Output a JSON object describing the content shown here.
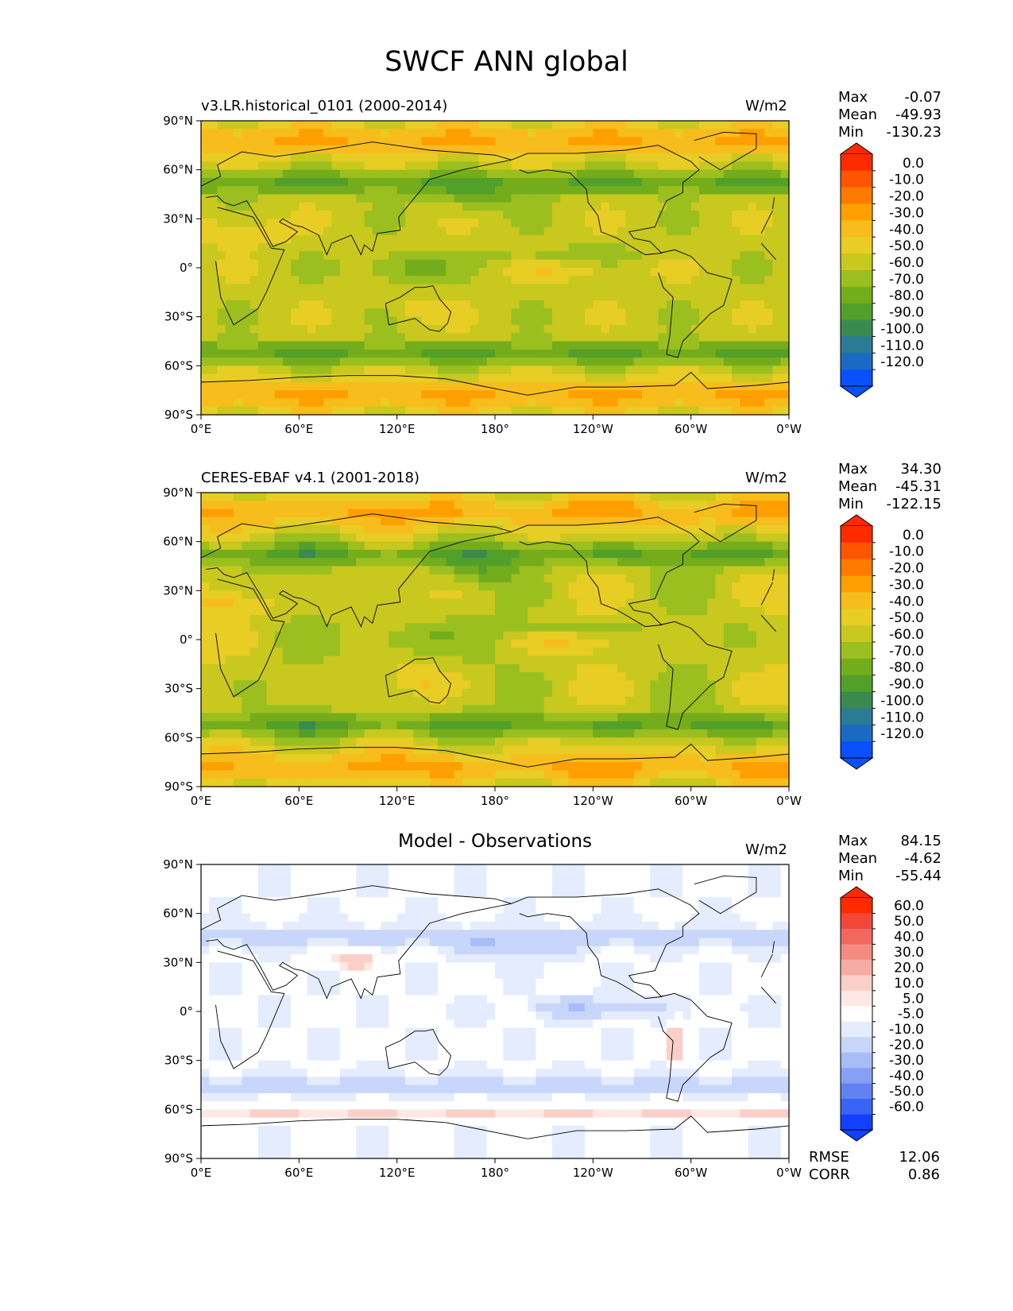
{
  "figure": {
    "title": "SWCF ANN global"
  },
  "lat_ticks": [
    "90°N",
    "60°N",
    "30°N",
    "0°",
    "30°S",
    "60°S",
    "90°S"
  ],
  "lon_ticks": [
    "0°E",
    "60°E",
    "120°E",
    "180°",
    "120°W",
    "60°W",
    "0°W"
  ],
  "panels": [
    {
      "title_left": "v3.LR.historical_0101 (2000-2014)",
      "title_center": "",
      "units": "W/m2",
      "stats": [
        {
          "label": "Max",
          "value": "-0.07"
        },
        {
          "label": "Mean",
          "value": "-49.93"
        },
        {
          "label": "Min",
          "value": "-130.23"
        }
      ],
      "colorbar": {
        "labels": [
          "0.0",
          "-10.0",
          "-20.0",
          "-30.0",
          "-40.0",
          "-50.0",
          "-60.0",
          "-70.0",
          "-80.0",
          "-90.0",
          "-100.0",
          "-110.0",
          "-120.0"
        ],
        "colors": [
          "#ff2a00",
          "#ff5500",
          "#ff7a00",
          "#ff9f00",
          "#f7bd1c",
          "#e8cd25",
          "#c8c81e",
          "#9bbf1e",
          "#74ad1c",
          "#52a02a",
          "#3a8a50",
          "#2a7b93",
          "#1a6ac4",
          "#0a50ff"
        ]
      }
    },
    {
      "title_left": "CERES-EBAF v4.1 (2001-2018)",
      "title_center": "",
      "units": "W/m2",
      "stats": [
        {
          "label": "Max",
          "value": "34.30"
        },
        {
          "label": "Mean",
          "value": "-45.31"
        },
        {
          "label": "Min",
          "value": "-122.15"
        }
      ],
      "colorbar": {
        "labels": [
          "0.0",
          "-10.0",
          "-20.0",
          "-30.0",
          "-40.0",
          "-50.0",
          "-60.0",
          "-70.0",
          "-80.0",
          "-90.0",
          "-100.0",
          "-110.0",
          "-120.0"
        ],
        "colors": [
          "#ff2a00",
          "#ff5500",
          "#ff7a00",
          "#ff9f00",
          "#f7bd1c",
          "#e8cd25",
          "#c8c81e",
          "#9bbf1e",
          "#74ad1c",
          "#52a02a",
          "#3a8a50",
          "#2a7b93",
          "#1a6ac4",
          "#0a50ff"
        ]
      }
    },
    {
      "title_left": "",
      "title_center": "Model - Observations",
      "units": "W/m2",
      "stats": [
        {
          "label": "Max",
          "value": "84.15"
        },
        {
          "label": "Mean",
          "value": "-4.62"
        },
        {
          "label": "Min",
          "value": "-55.44"
        }
      ],
      "metrics": [
        {
          "label": "RMSE",
          "value": "12.06"
        },
        {
          "label": "CORR",
          "value": "0.86"
        }
      ],
      "colorbar": {
        "labels": [
          "60.0",
          "50.0",
          "40.0",
          "30.0",
          "20.0",
          "10.0",
          "5.0",
          "-5.0",
          "-10.0",
          "-20.0",
          "-30.0",
          "-40.0",
          "-50.0",
          "-60.0"
        ],
        "colors": [
          "#ff2a00",
          "#f2483a",
          "#f2685e",
          "#f58a80",
          "#f7aca3",
          "#fbcfc8",
          "#fde8e4",
          "#ffffff",
          "#e4ecfd",
          "#c9d6fb",
          "#a8bcf8",
          "#87a0f5",
          "#6082f3",
          "#3a64f5",
          "#1240ff"
        ]
      }
    }
  ],
  "chart_data": [
    {
      "type": "heatmap",
      "projection": "equirectangular global map",
      "title": "v3.LR.historical_0101 (2000-2014)",
      "units": "W/m2",
      "xlim": [
        0,
        360
      ],
      "ylim": [
        -90,
        90
      ],
      "color_range": [
        -130,
        0
      ],
      "summary": {
        "max": -0.07,
        "mean": -49.93,
        "min": -130.23
      }
    },
    {
      "type": "heatmap",
      "projection": "equirectangular global map",
      "title": "CERES-EBAF v4.1 (2001-2018)",
      "units": "W/m2",
      "xlim": [
        0,
        360
      ],
      "ylim": [
        -90,
        90
      ],
      "color_range": [
        -130,
        0
      ],
      "summary": {
        "max": 34.3,
        "mean": -45.31,
        "min": -122.15
      }
    },
    {
      "type": "heatmap",
      "projection": "equirectangular global map",
      "title": "Model - Observations",
      "units": "W/m2",
      "xlim": [
        0,
        360
      ],
      "ylim": [
        -90,
        90
      ],
      "color_range": [
        -60,
        60
      ],
      "summary": {
        "max": 84.15,
        "mean": -4.62,
        "min": -55.44,
        "rmse": 12.06,
        "corr": 0.86
      }
    }
  ]
}
